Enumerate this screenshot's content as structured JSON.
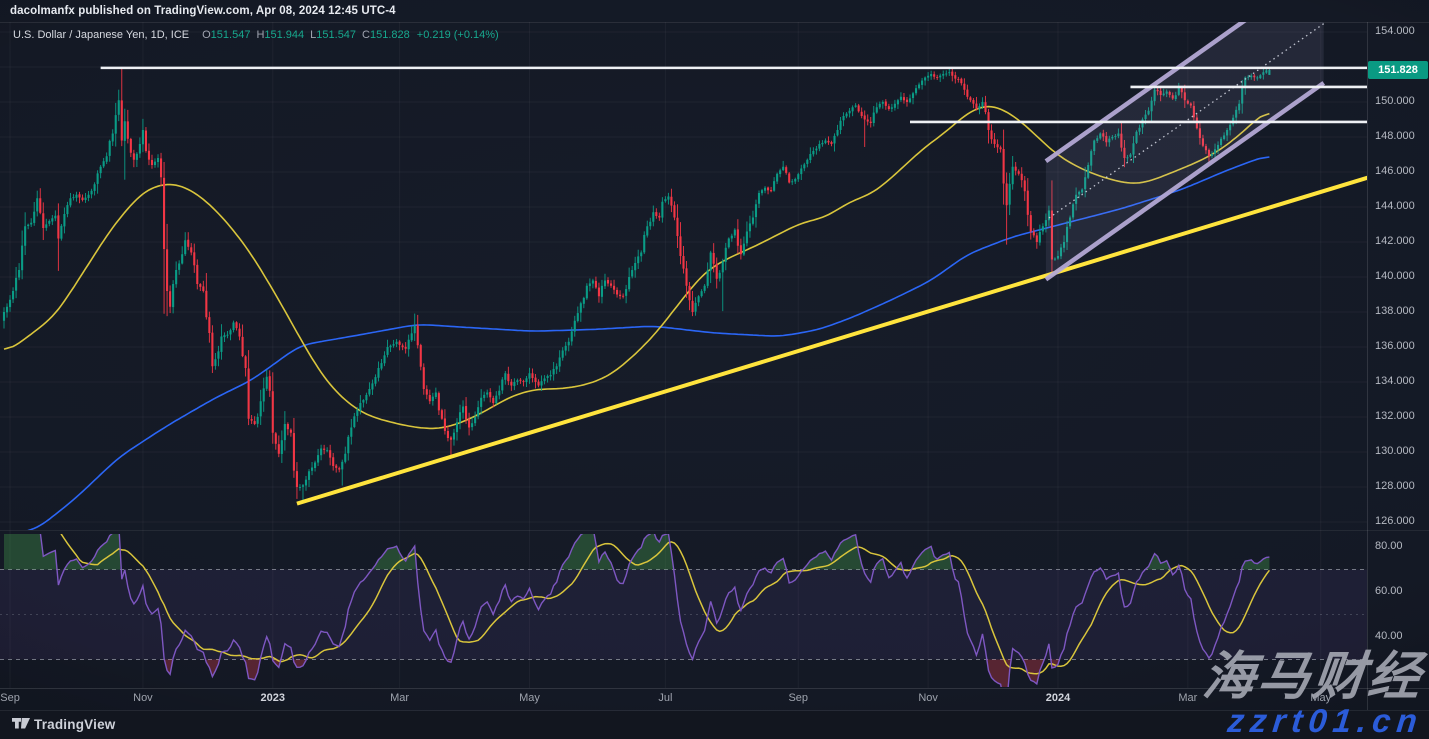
{
  "header": {
    "published_line": "dacolmanfx published on TradingView.com, Apr 08, 2024 12:45 UTC-4"
  },
  "legend": {
    "symbol": "U.S. Dollar / Japanese Yen, 1D, ICE",
    "o_label": "O",
    "o_value": "151.547",
    "h_label": "H",
    "h_value": "151.944",
    "l_label": "L",
    "l_value": "151.547",
    "c_label": "C",
    "c_value": "151.828",
    "change": "+0.219 (+0.14%)"
  },
  "price_axis": {
    "ticks": [
      154,
      152,
      150,
      148,
      146,
      144,
      142,
      140,
      138,
      136,
      134,
      132,
      130,
      128,
      126
    ],
    "last_price_label": "151.828"
  },
  "rsi_axis": {
    "ticks": [
      80,
      60,
      40
    ]
  },
  "watermark": {
    "line1": "海马财经",
    "line2": "zzrt01.cn"
  },
  "footer": {
    "brand": "TradingView"
  },
  "colors": {
    "up": "#0a9c86",
    "down": "#f23645",
    "ma_fast": "#d9c53c",
    "ma_slow": "#2b66f6",
    "trendline": "#ffe43d",
    "channel": "#b3a8d4",
    "channel_fill": "rgba(190,178,224,0.10)",
    "dotted": "#c9ccd8",
    "level": "#eef0f4",
    "rsi": "#7e57c2",
    "rsi_signal": "#d9c53c",
    "band_fill": "rgba(126,87,194,0.10)",
    "band_line": "#8d919e",
    "overbought_fill": "rgba(76,175,80,0.32)",
    "oversold_fill": "rgba(244,67,84,0.30)",
    "grid": "rgba(255,255,255,0.045)",
    "badge_bg": "#0a9a83",
    "badge_text": "#ffffff",
    "watermark1": "#a2a5b0",
    "watermark2": "#2b5cd9"
  },
  "chart_data": {
    "type": "candlestick+rsi",
    "symbol": "U.S. Dollar / Japanese Yen",
    "timeframe": "1D",
    "exchange": "ICE",
    "last_candle": {
      "open": 151.547,
      "high": 151.944,
      "low": 151.547,
      "close": 151.828,
      "change": "+0.219",
      "change_pct": "+0.14%"
    },
    "num_days": 420,
    "price_ticks": [
      154,
      152,
      150,
      148,
      146,
      144,
      142,
      140,
      138,
      136,
      134,
      132,
      130,
      128,
      126
    ],
    "close_keypoints": [
      [
        0,
        138.0
      ],
      [
        3,
        139.2
      ],
      [
        5,
        140.4
      ],
      [
        7,
        142.9
      ],
      [
        9,
        143.1
      ],
      [
        11,
        144.5
      ],
      [
        13,
        142.8
      ],
      [
        15,
        143.2
      ],
      [
        17,
        143.5
      ],
      [
        18,
        142.2
      ],
      [
        20,
        143.6
      ],
      [
        22,
        144.5
      ],
      [
        24,
        144.7
      ],
      [
        26,
        144.4
      ],
      [
        28,
        144.7
      ],
      [
        30,
        145.3
      ],
      [
        32,
        146.3
      ],
      [
        34,
        146.9
      ],
      [
        36,
        148.2
      ],
      [
        38,
        150.1
      ],
      [
        39,
        147.8
      ],
      [
        40,
        148.9
      ],
      [
        41,
        147.9
      ],
      [
        43,
        146.7
      ],
      [
        45,
        147.6
      ],
      [
        46,
        148.4
      ],
      [
        47,
        147.2
      ],
      [
        49,
        146.4
      ],
      [
        51,
        146.8
      ],
      [
        52,
        145.7
      ],
      [
        53,
        141.6
      ],
      [
        54,
        139.2
      ],
      [
        55,
        138.3
      ],
      [
        56,
        139.6
      ],
      [
        57,
        140.4
      ],
      [
        59,
        141.3
      ],
      [
        60,
        142.1
      ],
      [
        62,
        141.4
      ],
      [
        64,
        139.6
      ],
      [
        66,
        139.2
      ],
      [
        68,
        136.8
      ],
      [
        69,
        134.9
      ],
      [
        70,
        135.3
      ],
      [
        72,
        136.6
      ],
      [
        74,
        136.7
      ],
      [
        76,
        137.4
      ],
      [
        78,
        136.6
      ],
      [
        80,
        134.8
      ],
      [
        81,
        131.9
      ],
      [
        83,
        131.6
      ],
      [
        85,
        132.9
      ],
      [
        87,
        134.3
      ],
      [
        88,
        133.5
      ],
      [
        89,
        131.1
      ],
      [
        91,
        129.9
      ],
      [
        93,
        131.6
      ],
      [
        95,
        131.1
      ],
      [
        97,
        128.0
      ],
      [
        99,
        128.1
      ],
      [
        101,
        128.9
      ],
      [
        103,
        129.4
      ],
      [
        105,
        130.2
      ],
      [
        107,
        130.1
      ],
      [
        109,
        129.2
      ],
      [
        111,
        129.0
      ],
      [
        113,
        129.9
      ],
      [
        115,
        131.4
      ],
      [
        118,
        132.8
      ],
      [
        121,
        133.6
      ],
      [
        124,
        134.8
      ],
      [
        127,
        136.0
      ],
      [
        130,
        136.3
      ],
      [
        133,
        135.9
      ],
      [
        136,
        137.2
      ],
      [
        137,
        136.1
      ],
      [
        139,
        133.6
      ],
      [
        141,
        132.9
      ],
      [
        143,
        133.4
      ],
      [
        145,
        131.9
      ],
      [
        147,
        130.8
      ],
      [
        148,
        130.7
      ],
      [
        150,
        131.7
      ],
      [
        152,
        132.6
      ],
      [
        154,
        131.4
      ],
      [
        156,
        132.0
      ],
      [
        158,
        133.1
      ],
      [
        160,
        133.4
      ],
      [
        162,
        132.8
      ],
      [
        164,
        133.5
      ],
      [
        166,
        134.5
      ],
      [
        168,
        133.8
      ],
      [
        170,
        134.1
      ],
      [
        172,
        134.0
      ],
      [
        174,
        134.5
      ],
      [
        176,
        134.0
      ],
      [
        177,
        133.8
      ],
      [
        179,
        134.2
      ],
      [
        181,
        134.4
      ],
      [
        183,
        134.9
      ],
      [
        185,
        135.8
      ],
      [
        187,
        136.3
      ],
      [
        189,
        137.5
      ],
      [
        191,
        138.5
      ],
      [
        193,
        139.5
      ],
      [
        195,
        139.8
      ],
      [
        197,
        138.9
      ],
      [
        199,
        139.8
      ],
      [
        201,
        139.5
      ],
      [
        203,
        139.0
      ],
      [
        205,
        138.9
      ],
      [
        207,
        140.0
      ],
      [
        209,
        140.8
      ],
      [
        211,
        141.4
      ],
      [
        213,
        142.9
      ],
      [
        215,
        143.7
      ],
      [
        217,
        143.4
      ],
      [
        218,
        144.3
      ],
      [
        220,
        144.6
      ],
      [
        222,
        143.4
      ],
      [
        224,
        141.2
      ],
      [
        226,
        139.5
      ],
      [
        228,
        138.0
      ],
      [
        230,
        138.9
      ],
      [
        232,
        139.5
      ],
      [
        234,
        141.4
      ],
      [
        236,
        139.9
      ],
      [
        238,
        140.9
      ],
      [
        240,
        142.2
      ],
      [
        242,
        142.7
      ],
      [
        244,
        141.3
      ],
      [
        246,
        142.6
      ],
      [
        248,
        143.4
      ],
      [
        250,
        144.8
      ],
      [
        252,
        145.1
      ],
      [
        254,
        144.9
      ],
      [
        256,
        145.9
      ],
      [
        258,
        146.3
      ],
      [
        260,
        145.4
      ],
      [
        262,
        145.6
      ],
      [
        264,
        146.2
      ],
      [
        266,
        146.7
      ],
      [
        268,
        147.2
      ],
      [
        270,
        147.6
      ],
      [
        272,
        147.8
      ],
      [
        274,
        147.6
      ],
      [
        276,
        148.4
      ],
      [
        278,
        149.2
      ],
      [
        280,
        149.5
      ],
      [
        282,
        149.8
      ],
      [
        284,
        149.2
      ],
      [
        285,
        149.0
      ],
      [
        287,
        148.8
      ],
      [
        289,
        149.7
      ],
      [
        291,
        150.0
      ],
      [
        293,
        149.6
      ],
      [
        295,
        149.9
      ],
      [
        297,
        150.3
      ],
      [
        299,
        150.0
      ],
      [
        301,
        150.5
      ],
      [
        303,
        151.0
      ],
      [
        305,
        151.4
      ],
      [
        307,
        151.6
      ],
      [
        309,
        151.4
      ],
      [
        311,
        151.6
      ],
      [
        313,
        151.7
      ],
      [
        314,
        151.5
      ],
      [
        316,
        151.3
      ],
      [
        318,
        150.7
      ],
      [
        320,
        150.1
      ],
      [
        322,
        149.6
      ],
      [
        324,
        150.0
      ],
      [
        326,
        148.4
      ],
      [
        328,
        147.6
      ],
      [
        330,
        147.3
      ],
      [
        332,
        144.1
      ],
      [
        334,
        146.3
      ],
      [
        336,
        145.9
      ],
      [
        338,
        144.9
      ],
      [
        340,
        142.6
      ],
      [
        342,
        142.0
      ],
      [
        344,
        142.9
      ],
      [
        346,
        143.8
      ],
      [
        347,
        141.0
      ],
      [
        349,
        141.2
      ],
      [
        351,
        142.0
      ],
      [
        353,
        143.4
      ],
      [
        355,
        144.7
      ],
      [
        357,
        145.0
      ],
      [
        359,
        146.4
      ],
      [
        361,
        147.8
      ],
      [
        363,
        148.2
      ],
      [
        365,
        147.7
      ],
      [
        367,
        148.0
      ],
      [
        369,
        148.2
      ],
      [
        371,
        146.8
      ],
      [
        373,
        147.0
      ],
      [
        375,
        148.3
      ],
      [
        377,
        149.0
      ],
      [
        379,
        149.5
      ],
      [
        381,
        150.7
      ],
      [
        383,
        150.4
      ],
      [
        385,
        150.6
      ],
      [
        387,
        150.2
      ],
      [
        389,
        150.8
      ],
      [
        391,
        150.1
      ],
      [
        393,
        149.8
      ],
      [
        395,
        148.5
      ],
      [
        397,
        147.5
      ],
      [
        399,
        146.9
      ],
      [
        401,
        147.3
      ],
      [
        403,
        147.9
      ],
      [
        405,
        148.4
      ],
      [
        407,
        149.1
      ],
      [
        409,
        149.9
      ],
      [
        411,
        151.4
      ],
      [
        413,
        151.5
      ],
      [
        415,
        151.4
      ],
      [
        417,
        151.7
      ],
      [
        419,
        151.828
      ]
    ],
    "wick_events": [
      {
        "i": 18,
        "low": 140.35
      },
      {
        "i": 39,
        "high": 151.94
      },
      {
        "i": 40,
        "low": 145.56
      },
      {
        "i": 53,
        "low": 137.9
      },
      {
        "i": 99,
        "low": 127.21
      },
      {
        "i": 112,
        "low": 128.08
      },
      {
        "i": 136,
        "high": 137.91
      },
      {
        "i": 148,
        "low": 129.64
      },
      {
        "i": 238,
        "low": 138.05
      },
      {
        "i": 285,
        "low": 147.43
      },
      {
        "i": 313,
        "high": 151.91
      },
      {
        "i": 332,
        "low": 141.85
      },
      {
        "i": 347,
        "low": 140.25
      },
      {
        "i": 399,
        "low": 146.48
      }
    ],
    "ma_fast_keypoints": [
      [
        0,
        135.6
      ],
      [
        8,
        136.6
      ],
      [
        17,
        137.8
      ],
      [
        26,
        140.2
      ],
      [
        36,
        142.9
      ],
      [
        46,
        144.9
      ],
      [
        54,
        145.4
      ],
      [
        61,
        145.1
      ],
      [
        68,
        144.2
      ],
      [
        75,
        142.9
      ],
      [
        82,
        141.3
      ],
      [
        91,
        138.7
      ],
      [
        99,
        136.2
      ],
      [
        106,
        134.2
      ],
      [
        113,
        132.9
      ],
      [
        120,
        132.1
      ],
      [
        128,
        131.7
      ],
      [
        136,
        131.4
      ],
      [
        144,
        131.3
      ],
      [
        152,
        131.7
      ],
      [
        160,
        132.4
      ],
      [
        168,
        133.2
      ],
      [
        176,
        133.6
      ],
      [
        184,
        133.6
      ],
      [
        192,
        133.8
      ],
      [
        200,
        134.3
      ],
      [
        208,
        135.4
      ],
      [
        216,
        136.8
      ],
      [
        224,
        138.6
      ],
      [
        232,
        140.3
      ],
      [
        240,
        141.1
      ],
      [
        248,
        141.7
      ],
      [
        256,
        142.4
      ],
      [
        264,
        143.1
      ],
      [
        272,
        143.4
      ],
      [
        280,
        144.3
      ],
      [
        288,
        144.8
      ],
      [
        296,
        146.0
      ],
      [
        304,
        147.3
      ],
      [
        312,
        148.3
      ],
      [
        319,
        149.4
      ],
      [
        326,
        149.9
      ],
      [
        333,
        149.4
      ],
      [
        340,
        148.4
      ],
      [
        347,
        147.2
      ],
      [
        354,
        146.4
      ],
      [
        362,
        145.8
      ],
      [
        370,
        145.4
      ],
      [
        376,
        145.3
      ],
      [
        383,
        145.7
      ],
      [
        390,
        146.2
      ],
      [
        397,
        146.7
      ],
      [
        404,
        147.4
      ],
      [
        411,
        148.4
      ],
      [
        419,
        149.7
      ]
    ],
    "ma_slow_keypoints": [
      [
        0,
        125.2
      ],
      [
        11,
        125.6
      ],
      [
        24,
        127.4
      ],
      [
        38,
        129.7
      ],
      [
        54,
        131.5
      ],
      [
        70,
        133.1
      ],
      [
        82,
        134.1
      ],
      [
        98,
        136.1
      ],
      [
        118,
        136.7
      ],
      [
        137,
        137.3
      ],
      [
        155,
        137.1
      ],
      [
        175,
        136.9
      ],
      [
        195,
        137.0
      ],
      [
        215,
        137.2
      ],
      [
        235,
        136.8
      ],
      [
        257,
        136.6
      ],
      [
        270,
        137.0
      ],
      [
        281,
        137.7
      ],
      [
        294,
        138.7
      ],
      [
        307,
        139.8
      ],
      [
        319,
        141.3
      ],
      [
        334,
        142.3
      ],
      [
        352,
        143.1
      ],
      [
        370,
        143.9
      ],
      [
        390,
        145.0
      ],
      [
        405,
        146.1
      ],
      [
        419,
        147.0
      ]
    ],
    "horizontal_levels": [
      {
        "price": 151.95,
        "from_i": 32
      },
      {
        "price": 150.86,
        "from_i": 373
      },
      {
        "price": 148.86,
        "from_i": 300
      }
    ],
    "trendline": {
      "from_i": 97,
      "from_price": 127.05,
      "to_i": 452,
      "to_price": 145.7
    },
    "channel": {
      "from_i": 345,
      "from_price": 139.86,
      "to_i": 437,
      "to_price": 151.09,
      "width_price": 6.76,
      "mid_offset": 3.39
    },
    "rsi": {
      "period": 14,
      "signal_period": 14,
      "overbought": 70,
      "midline": 50,
      "oversold": 30,
      "ticks": [
        80,
        60,
        40
      ]
    },
    "months": [
      {
        "label": "Sep",
        "i": 2
      },
      {
        "label": "Nov",
        "i": 46
      },
      {
        "label": "2023",
        "i": 89,
        "year": true
      },
      {
        "label": "Mar",
        "i": 131
      },
      {
        "label": "May",
        "i": 174
      },
      {
        "label": "Jul",
        "i": 219
      },
      {
        "label": "Sep",
        "i": 263
      },
      {
        "label": "Nov",
        "i": 306
      },
      {
        "label": "2024",
        "i": 349,
        "year": true
      },
      {
        "label": "Mar",
        "i": 392
      },
      {
        "label": "May",
        "i": 436
      }
    ]
  }
}
